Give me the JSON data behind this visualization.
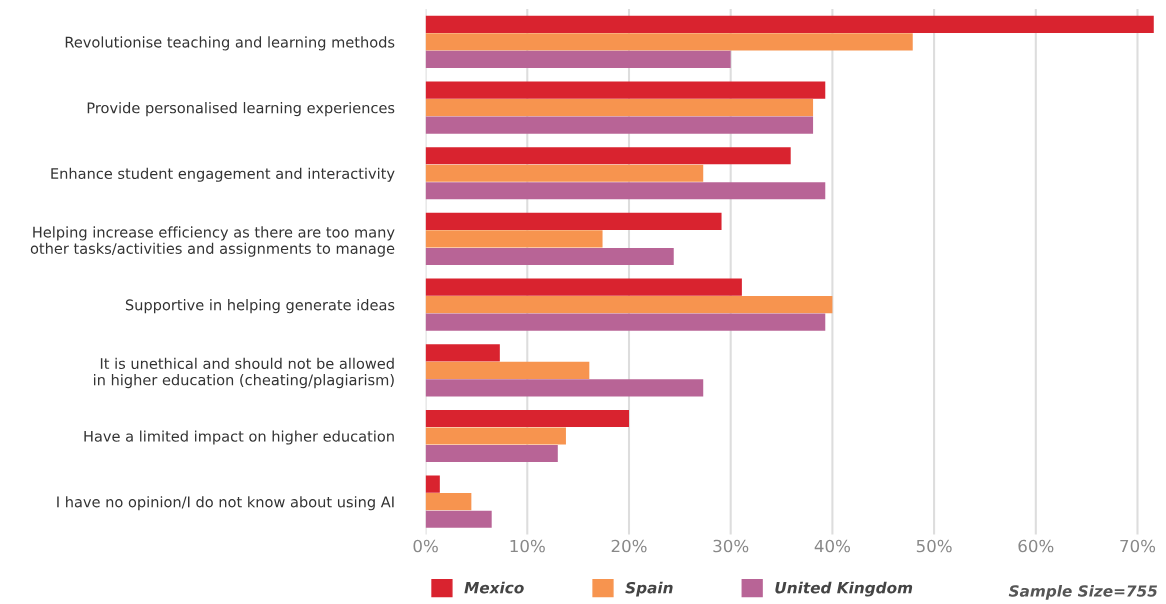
{
  "chart_data": {
    "type": "bar",
    "orientation": "horizontal",
    "categories": [
      "Revolutionise teaching and learning methods",
      "Provide personalised learning experiences",
      "Enhance student engagement and interactivity",
      "Helping increase efficiency as there are too many\nother tasks/activities and assignments to manage",
      "Supportive in helping generate ideas",
      "It is unethical and should not be allowed\nin higher education (cheating/plagiarism)",
      "Have a limited impact on higher education",
      "I have no opinion/I do not know about using AI"
    ],
    "series": [
      {
        "name": "Mexico",
        "color": "#d9232f",
        "values": [
          71.6,
          39.3,
          35.9,
          29.1,
          31.1,
          7.3,
          20.0,
          1.4
        ]
      },
      {
        "name": "Spain",
        "color": "#f7944f",
        "values": [
          47.9,
          38.1,
          27.3,
          17.4,
          40.0,
          16.1,
          13.8,
          4.5
        ]
      },
      {
        "name": "United Kingdom",
        "color": "#b86496",
        "values": [
          30.0,
          38.1,
          39.3,
          24.4,
          39.3,
          27.3,
          13.0,
          6.5
        ]
      }
    ],
    "xlim": [
      0,
      72
    ],
    "xticks": [
      {
        "value": 0,
        "label": "0%"
      },
      {
        "value": 10,
        "label": "10%"
      },
      {
        "value": 20,
        "label": "20%"
      },
      {
        "value": 30,
        "label": "30%"
      },
      {
        "value": 40,
        "label": "40%"
      },
      {
        "value": 50,
        "label": "50%"
      },
      {
        "value": 60,
        "label": "60%"
      },
      {
        "value": 70,
        "label": "70%"
      }
    ],
    "grid": "x",
    "legend": "bottom",
    "annotations": [
      "Sample Size=755"
    ]
  }
}
